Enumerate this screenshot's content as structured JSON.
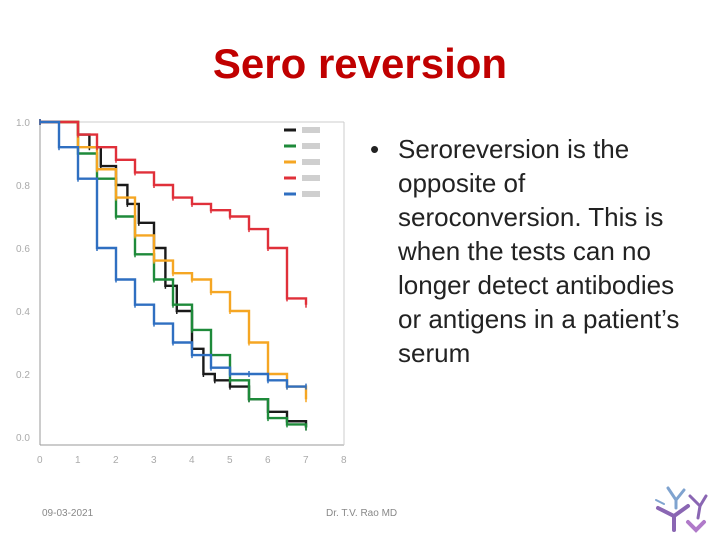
{
  "slide": {
    "title": "Sero reversion",
    "bullet": {
      "bold_term": "Seroreversion",
      "text": " is the opposite of seroconversion. This is when the tests can no longer detect antibodies or antigens in a patient’s serum"
    },
    "footer": {
      "date": "09-03-2021",
      "author": "Dr. T.V. Rao MD"
    },
    "colors": {
      "title": "#c00000",
      "black_series": "#1a1a1a",
      "green_series": "#1e8a3a",
      "orange_series": "#f5a623",
      "red_series": "#e0303a",
      "blue_series": "#2f6fc1"
    }
  },
  "chart_data": {
    "type": "line",
    "x_ticks": [
      "0",
      "1",
      "2",
      "3",
      "4",
      "5",
      "6",
      "7",
      "8"
    ],
    "y_ticks": [
      "1.0",
      "0.8",
      "0.6",
      "0.4",
      "0.2",
      "0.0"
    ],
    "xlim": [
      0,
      8
    ],
    "ylim": [
      0,
      1
    ],
    "xlabel": "",
    "ylabel": "",
    "series": [
      {
        "name": "",
        "color": "#1a1a1a",
        "x": [
          0,
          1,
          1.3,
          1.6,
          2,
          2.3,
          2.6,
          3,
          3.3,
          3.6,
          4,
          4.3,
          4.6,
          5,
          5.5,
          6,
          6.5,
          7
        ],
        "y": [
          1.0,
          0.96,
          0.92,
          0.86,
          0.8,
          0.74,
          0.68,
          0.6,
          0.48,
          0.4,
          0.28,
          0.2,
          0.18,
          0.16,
          0.12,
          0.08,
          0.05,
          0.03
        ]
      },
      {
        "name": "",
        "color": "#1e8a3a",
        "x": [
          0,
          1,
          1.5,
          2,
          2.5,
          3,
          3.5,
          4,
          4.5,
          5,
          5.5,
          6,
          6.5,
          7
        ],
        "y": [
          1.0,
          0.9,
          0.82,
          0.7,
          0.58,
          0.5,
          0.42,
          0.34,
          0.26,
          0.18,
          0.12,
          0.06,
          0.04,
          0.03
        ]
      },
      {
        "name": "",
        "color": "#f5a623",
        "x": [
          0,
          1,
          1.5,
          2,
          2.5,
          3,
          3.5,
          4,
          4.5,
          5,
          5.5,
          6,
          6.5,
          7
        ],
        "y": [
          1.0,
          0.92,
          0.85,
          0.76,
          0.64,
          0.56,
          0.52,
          0.5,
          0.46,
          0.4,
          0.3,
          0.2,
          0.16,
          0.12
        ]
      },
      {
        "name": "",
        "color": "#e0303a",
        "x": [
          0,
          1,
          1.5,
          2,
          2.5,
          3,
          3.5,
          4,
          4.5,
          5,
          5.5,
          6,
          6.5,
          7
        ],
        "y": [
          1.0,
          0.96,
          0.92,
          0.88,
          0.84,
          0.8,
          0.76,
          0.74,
          0.72,
          0.7,
          0.66,
          0.6,
          0.44,
          0.42
        ]
      },
      {
        "name": "",
        "color": "#2f6fc1",
        "x": [
          0,
          0.5,
          1,
          1.5,
          2,
          2.5,
          3,
          3.5,
          4,
          4.5,
          5,
          5.5,
          6,
          6.5,
          7
        ],
        "y": [
          1.0,
          0.92,
          0.82,
          0.6,
          0.5,
          0.42,
          0.36,
          0.3,
          0.26,
          0.22,
          0.2,
          0.2,
          0.18,
          0.16,
          0.16
        ]
      }
    ]
  }
}
